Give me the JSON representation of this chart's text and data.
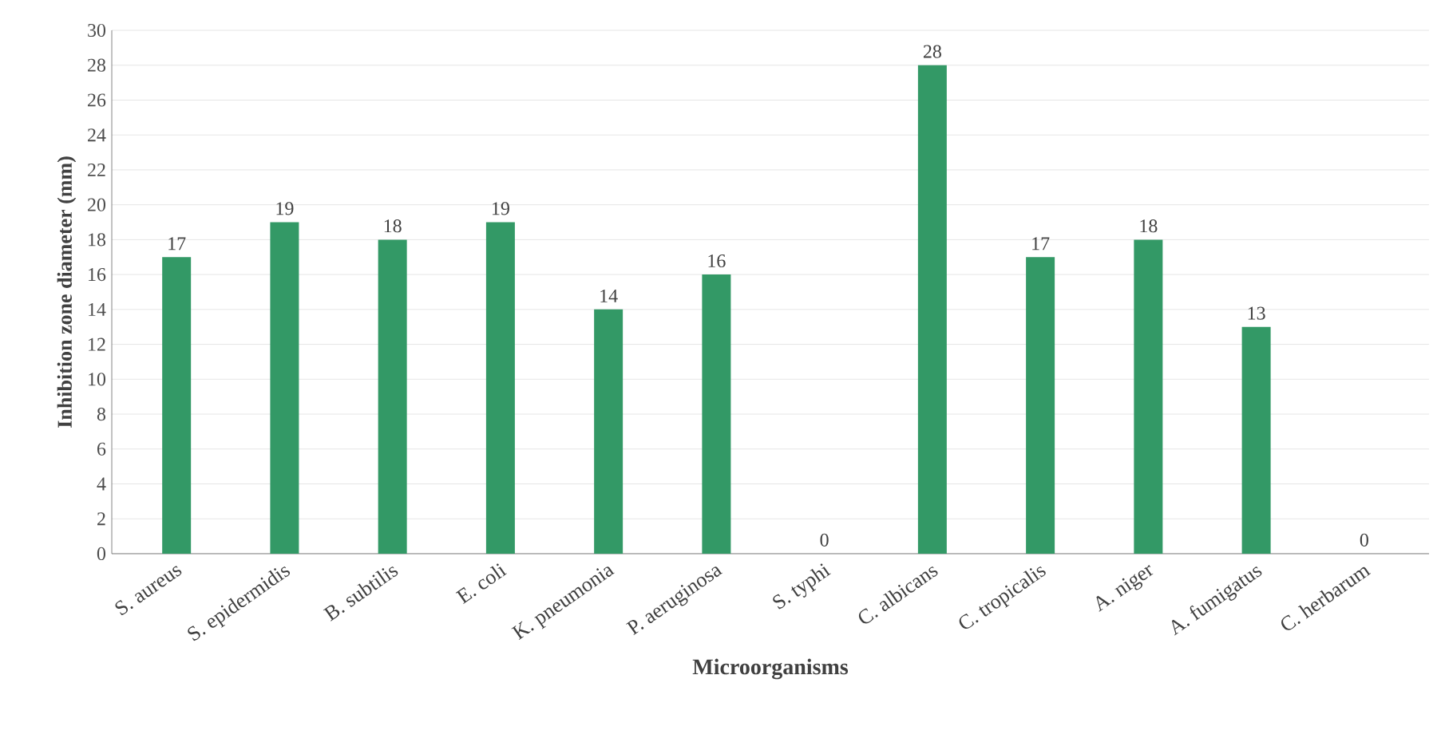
{
  "chart_data": {
    "type": "bar",
    "xlabel": "Microorganisms",
    "ylabel": "Inhibition zone diameter (mm)",
    "categories": [
      "S. aureus",
      "S. epidermidis",
      "B. subtilis",
      "E. coli",
      "K. pneumonia",
      "P. aeruginosa",
      "S. typhi",
      "C. albicans",
      "C. tropicalis",
      "A. niger",
      "A. fumigatus",
      "C. herbarum"
    ],
    "values": [
      17,
      19,
      18,
      19,
      14,
      16,
      0,
      28,
      17,
      18,
      13,
      0
    ],
    "color": "#339966",
    "ylim": [
      0,
      30
    ],
    "yticks": [
      0,
      2,
      4,
      6,
      8,
      10,
      12,
      14,
      16,
      18,
      20,
      22,
      24,
      26,
      28,
      30
    ],
    "grid": "y",
    "data_labels": true
  }
}
